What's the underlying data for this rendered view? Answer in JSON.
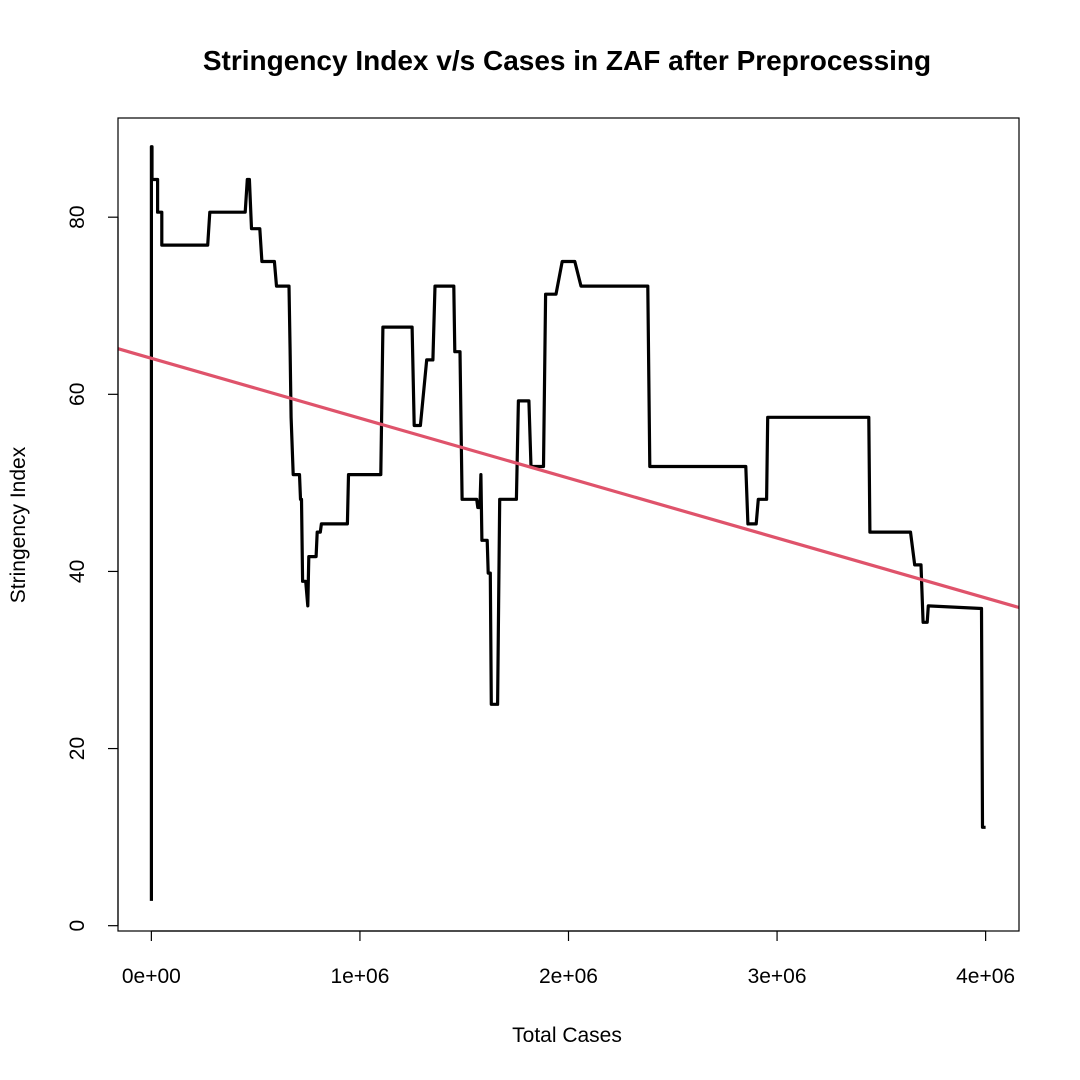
{
  "chart_data": {
    "type": "line",
    "title": "Stringency Index v/s Cases in ZAF after Preprocessing",
    "xlabel": "Total Cases",
    "ylabel": "Stringency Index",
    "xlim": [
      -160000,
      4160000
    ],
    "ylim": [
      -0.6,
      91.2
    ],
    "x_ticks": [
      0,
      1000000,
      2000000,
      3000000,
      4000000
    ],
    "x_tick_labels": [
      "0e+00",
      "1e+06",
      "2e+06",
      "3e+06",
      "4e+06"
    ],
    "y_ticks": [
      0,
      20,
      40,
      60,
      80
    ],
    "y_tick_labels": [
      "0",
      "20",
      "40",
      "60",
      "80"
    ],
    "grid": false,
    "legend": "none",
    "series": [
      {
        "style": "step",
        "color": "#000000",
        "points": [
          [
            0,
            2.8
          ],
          [
            0,
            87.96
          ],
          [
            3000,
            87.96
          ],
          [
            3000,
            84.26
          ],
          [
            30000,
            84.26
          ],
          [
            30000,
            80.56
          ],
          [
            50000,
            80.56
          ],
          [
            50000,
            76.85
          ],
          [
            270000,
            76.85
          ],
          [
            280000,
            80.56
          ],
          [
            450000,
            80.56
          ],
          [
            460000,
            84.26
          ],
          [
            470000,
            84.26
          ],
          [
            480000,
            78.7
          ],
          [
            520000,
            78.7
          ],
          [
            530000,
            75
          ],
          [
            590000,
            75
          ],
          [
            600000,
            72.22
          ],
          [
            660000,
            72.22
          ],
          [
            665000,
            65
          ],
          [
            670000,
            57.41
          ],
          [
            680000,
            50.93
          ],
          [
            710000,
            50.93
          ],
          [
            715000,
            48.15
          ],
          [
            720000,
            48.15
          ],
          [
            725000,
            38.89
          ],
          [
            740000,
            38.89
          ],
          [
            750000,
            36.11
          ],
          [
            755000,
            41.67
          ],
          [
            790000,
            41.67
          ],
          [
            795000,
            44.44
          ],
          [
            810000,
            44.44
          ],
          [
            815000,
            45.37
          ],
          [
            940000,
            45.37
          ],
          [
            945000,
            50.93
          ],
          [
            1100000,
            50.93
          ],
          [
            1110000,
            67.59
          ],
          [
            1250000,
            67.59
          ],
          [
            1260000,
            56.48
          ],
          [
            1290000,
            56.48
          ],
          [
            1320000,
            63.89
          ],
          [
            1350000,
            63.89
          ],
          [
            1360000,
            72.22
          ],
          [
            1450000,
            72.22
          ],
          [
            1455000,
            64.81
          ],
          [
            1480000,
            64.81
          ],
          [
            1490000,
            48.15
          ],
          [
            1560000,
            48.15
          ],
          [
            1565000,
            47.22
          ],
          [
            1575000,
            47.22
          ],
          [
            1580000,
            50.93
          ],
          [
            1585000,
            43.52
          ],
          [
            1610000,
            43.52
          ],
          [
            1615000,
            39.81
          ],
          [
            1625000,
            39.81
          ],
          [
            1630000,
            25
          ],
          [
            1660000,
            25
          ],
          [
            1665000,
            36.11
          ],
          [
            1670000,
            48.15
          ],
          [
            1750000,
            48.15
          ],
          [
            1760000,
            59.26
          ],
          [
            1810000,
            59.26
          ],
          [
            1820000,
            51.85
          ],
          [
            1880000,
            51.85
          ],
          [
            1890000,
            71.3
          ],
          [
            1940000,
            71.3
          ],
          [
            1970000,
            75
          ],
          [
            2030000,
            75
          ],
          [
            2060000,
            72.22
          ],
          [
            2380000,
            72.22
          ],
          [
            2390000,
            51.85
          ],
          [
            2850000,
            51.85
          ],
          [
            2860000,
            45.37
          ],
          [
            2900000,
            45.37
          ],
          [
            2910000,
            48.15
          ],
          [
            2950000,
            48.15
          ],
          [
            2955000,
            57.41
          ],
          [
            3440000,
            57.41
          ],
          [
            3445000,
            44.44
          ],
          [
            3640000,
            44.44
          ],
          [
            3660000,
            40.74
          ],
          [
            3690000,
            40.74
          ],
          [
            3700000,
            34.26
          ],
          [
            3720000,
            34.26
          ],
          [
            3725000,
            36.11
          ],
          [
            3980000,
            35.82
          ],
          [
            3985000,
            11.11
          ],
          [
            4000000,
            11.11
          ]
        ]
      },
      {
        "style": "line",
        "color": "#DF536B",
        "points": [
          [
            -160000,
            65.15
          ],
          [
            4160000,
            35.93
          ]
        ]
      }
    ]
  }
}
